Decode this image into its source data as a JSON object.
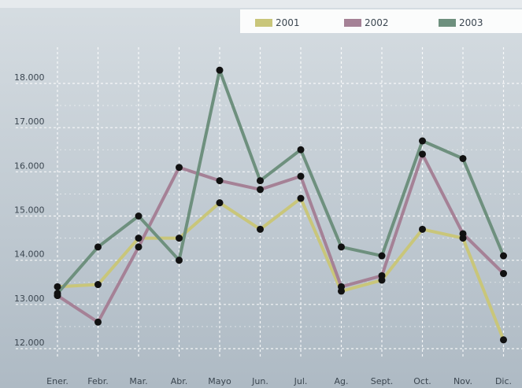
{
  "chart_data": {
    "type": "line",
    "categories": [
      "Ener.",
      "Febr.",
      "Mar.",
      "Abr.",
      "Mayo",
      "Jun.",
      "Jul.",
      "Ag.",
      "Sept.",
      "Oct.",
      "Nov.",
      "Dic."
    ],
    "series": [
      {
        "name": "2001",
        "color": "#c9c67a",
        "values": [
          13400,
          13450,
          14500,
          14500,
          15300,
          14700,
          15400,
          13300,
          13550,
          14700,
          14500,
          12200
        ]
      },
      {
        "name": "2002",
        "color": "#a58196",
        "values": [
          13200,
          12600,
          14300,
          16100,
          15800,
          15600,
          15900,
          13400,
          13650,
          16400,
          14600,
          13700
        ]
      },
      {
        "name": "2003",
        "color": "#6e907e",
        "values": [
          13250,
          14300,
          15000,
          14000,
          18300,
          15800,
          16500,
          14300,
          14100,
          16700,
          16300,
          14100
        ]
      }
    ],
    "y_ticks": [
      "12.000",
      "13.000",
      "14.000",
      "15.000",
      "16.000",
      "17.000",
      "18.000"
    ],
    "ylim": [
      12000,
      18000
    ],
    "grid": true,
    "legend_position": "top"
  }
}
